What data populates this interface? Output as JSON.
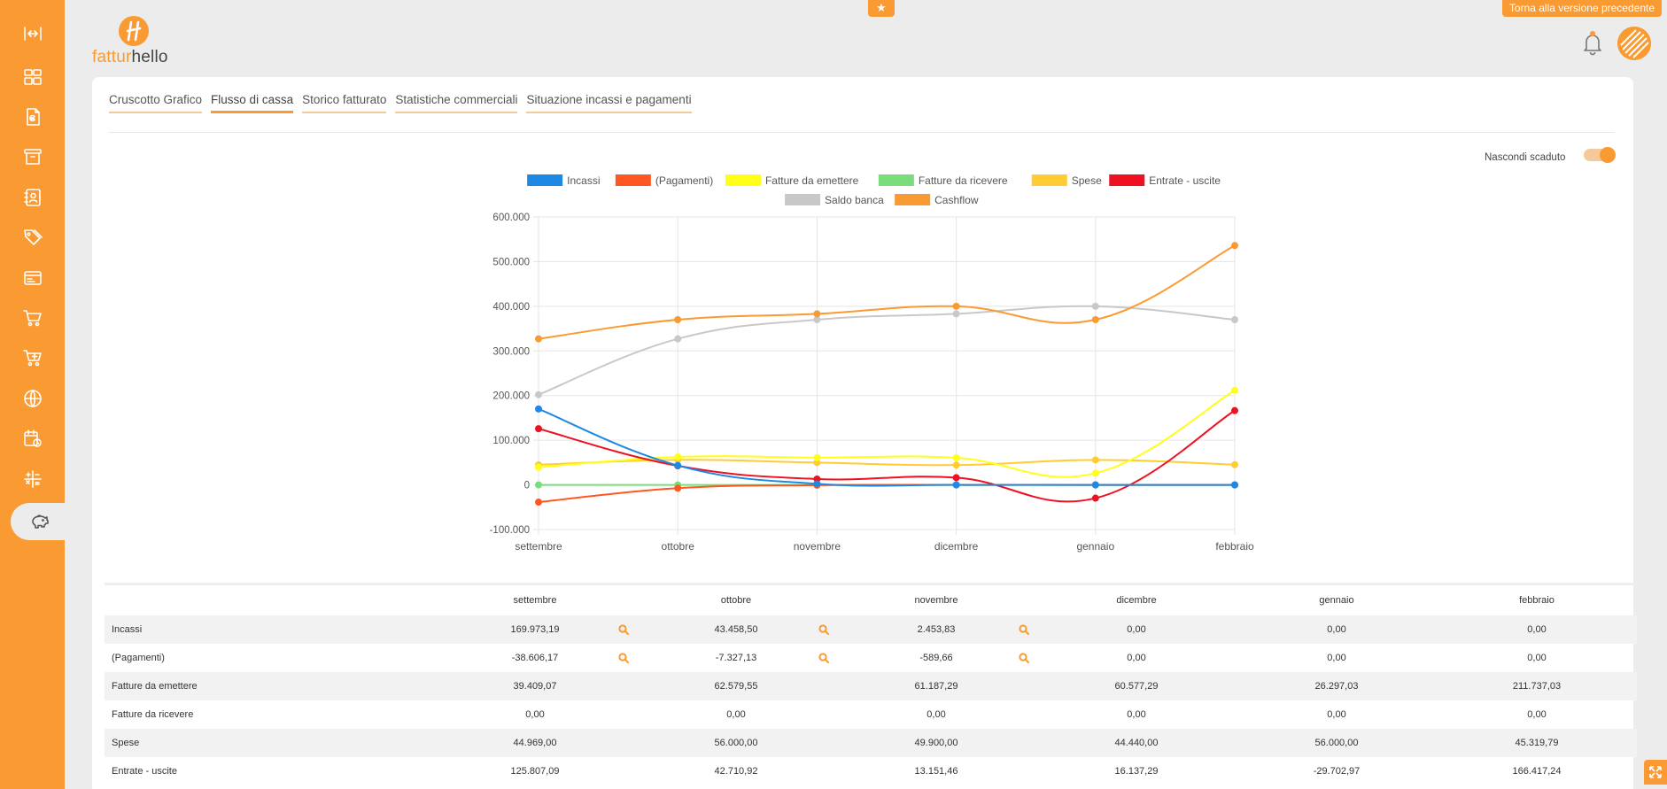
{
  "header": {
    "logo_part1": "fattur",
    "logo_part2": "hello",
    "prev_version_label": "Torna alla versione precedente"
  },
  "tabs": [
    {
      "label": "Cruscotto Grafico"
    },
    {
      "label": "Flusso di cassa"
    },
    {
      "label": "Storico fatturato"
    },
    {
      "label": "Statistiche commerciali"
    },
    {
      "label": "Situazione incassi e pagamenti"
    }
  ],
  "toggle": {
    "label": "Nascondi scaduto",
    "checked": true
  },
  "sidebar": {
    "icons": [
      "expand-icon",
      "dashboard-icon",
      "invoice-euro-icon",
      "archive-icon",
      "contacts-icon",
      "tags-icon",
      "card-icon",
      "cart-icon",
      "cart-add-icon",
      "globe-icon",
      "calendar-clock-icon",
      "calculator-icon",
      "piggy-bank-icon"
    ]
  },
  "chart_data": {
    "type": "line",
    "categories": [
      "settembre",
      "ottobre",
      "novembre",
      "dicembre",
      "gennaio",
      "febbraio"
    ],
    "ylim": [
      -100000,
      600000
    ],
    "yticks": [
      -100000,
      0,
      100000,
      200000,
      300000,
      400000,
      500000,
      600000
    ],
    "ytick_labels": [
      "-100.000",
      "0",
      "100.000",
      "200.000",
      "300.000",
      "400.000",
      "500.000",
      "600.000"
    ],
    "grid": true,
    "legend": "top",
    "series": [
      {
        "name": "Incassi",
        "color": "#1e88e5",
        "values": [
          169973.19,
          43458.5,
          2453.83,
          0,
          0,
          0
        ]
      },
      {
        "name": "(Pagamenti)",
        "color": "#ff5722",
        "values": [
          -38606.17,
          -7327.13,
          -589.66,
          0,
          0,
          0
        ]
      },
      {
        "name": "Fatture da emettere",
        "color": "#ffff1a",
        "values": [
          39409.07,
          62579.55,
          61187.29,
          60577.29,
          26297.03,
          211737.03
        ]
      },
      {
        "name": "Fatture da ricevere",
        "color": "#7bdc7b",
        "values": [
          0,
          0,
          0,
          0,
          0,
          0
        ]
      },
      {
        "name": "Spese",
        "color": "#ffcc33",
        "values": [
          44969.0,
          56000.0,
          49900.0,
          44440.0,
          56000.0,
          45319.79
        ]
      },
      {
        "name": "Entrate - uscite",
        "color": "#ee1122",
        "values": [
          125807.09,
          42710.92,
          13151.46,
          16137.29,
          -29702.97,
          166417.24
        ]
      },
      {
        "name": "Saldo banca",
        "color": "#c8c8c8",
        "values": [
          202000,
          327000,
          370000,
          383000,
          400000,
          370000
        ]
      },
      {
        "name": "Cashflow",
        "color": "#fa9a32",
        "values": [
          327000,
          370000,
          383000,
          400000,
          370000,
          536000
        ]
      }
    ]
  },
  "table": {
    "columns": [
      "settembre",
      "ottobre",
      "novembre",
      "dicembre",
      "gennaio",
      "febbraio"
    ],
    "rows": [
      {
        "label": "Incassi",
        "values": [
          "169.973,19",
          "43.458,50",
          "2.453,83",
          "0,00",
          "0,00",
          "0,00"
        ],
        "search": [
          true,
          true,
          true
        ]
      },
      {
        "label": "(Pagamenti)",
        "values": [
          "-38.606,17",
          "-7.327,13",
          "-589,66",
          "0,00",
          "0,00",
          "0,00"
        ],
        "search": [
          true,
          true,
          true
        ]
      },
      {
        "label": "Fatture da emettere",
        "values": [
          "39.409,07",
          "62.579,55",
          "61.187,29",
          "60.577,29",
          "26.297,03",
          "211.737,03"
        ],
        "search": []
      },
      {
        "label": "Fatture da ricevere",
        "values": [
          "0,00",
          "0,00",
          "0,00",
          "0,00",
          "0,00",
          "0,00"
        ],
        "search": []
      },
      {
        "label": "Spese",
        "values": [
          "44.969,00",
          "56.000,00",
          "49.900,00",
          "44.440,00",
          "56.000,00",
          "45.319,79"
        ],
        "search": []
      },
      {
        "label": "Entrate - uscite",
        "values": [
          "125.807,09",
          "42.710,92",
          "13.151,46",
          "16.137,29",
          "-29.702,97",
          "166.417,24"
        ],
        "search": []
      }
    ]
  }
}
